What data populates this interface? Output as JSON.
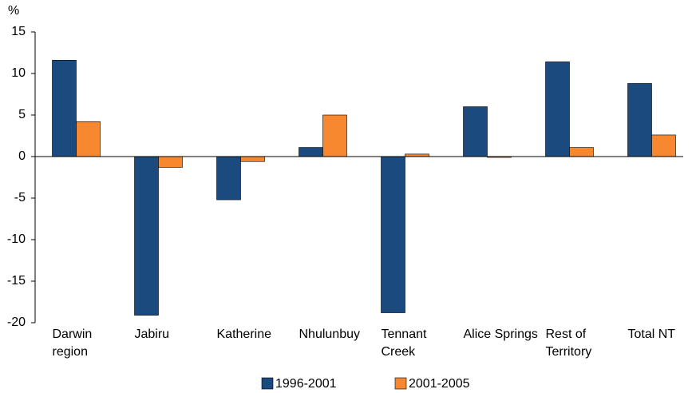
{
  "chart_data": {
    "type": "bar",
    "y_label": "%",
    "categories": [
      "Darwin region",
      "Jabiru",
      "Katherine",
      "Nhulunbuy",
      "Tennant Creek",
      "Alice Springs",
      "Rest of Territory",
      "Total NT"
    ],
    "series": [
      {
        "name": "1996-2001",
        "color": "#1b4a7f",
        "values": [
          11.6,
          -19.1,
          -5.2,
          1.1,
          -18.8,
          6.0,
          11.4,
          8.8
        ]
      },
      {
        "name": "2001-2005",
        "color": "#f7882f",
        "values": [
          4.2,
          -1.3,
          -0.6,
          5.0,
          0.3,
          -0.1,
          1.1,
          2.6
        ]
      }
    ],
    "ylim": [
      -20,
      15
    ],
    "yticks": [
      -20,
      -15,
      -10,
      -5,
      0,
      5,
      10,
      15
    ],
    "grid": false,
    "legend": "bottom"
  }
}
